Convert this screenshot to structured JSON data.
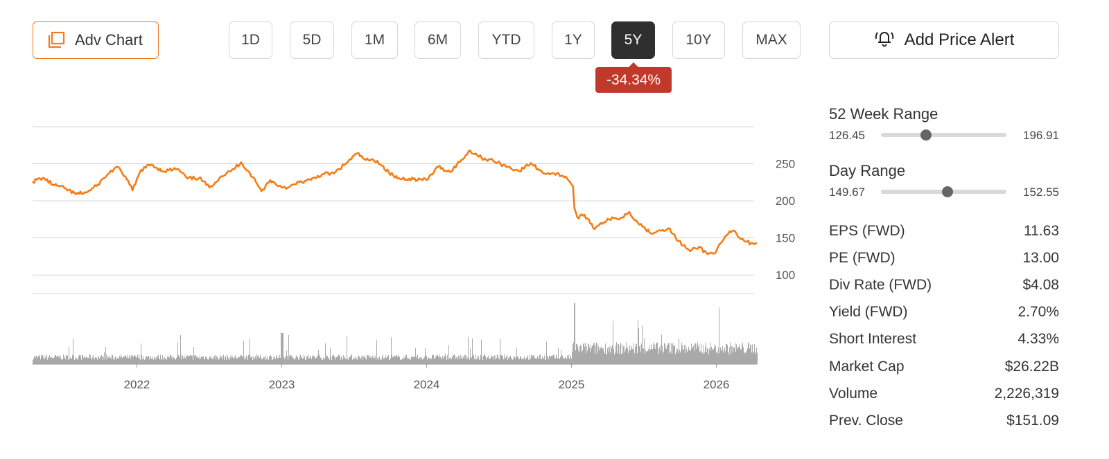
{
  "toolbar": {
    "adv_chart_label": "Adv Chart",
    "ranges": [
      "1D",
      "5D",
      "1M",
      "6M",
      "YTD",
      "1Y",
      "5Y",
      "10Y",
      "MAX"
    ],
    "active_range": "5Y",
    "add_alert_label": "Add Price Alert"
  },
  "change_badge": "-34.34%",
  "chart_data": {
    "type": "line",
    "x_tick_labels": [
      "2022",
      "2023",
      "2024",
      "2025",
      "2026"
    ],
    "y_tick_labels": [
      "250",
      "200",
      "150",
      "100"
    ],
    "ylim": [
      75,
      300
    ],
    "x_range": [
      2021.28,
      2026.28
    ],
    "grid": true,
    "line_color": "#f57c13",
    "volume_color": "#a9a9a9",
    "series": [
      {
        "values": [
          [
            2021.28,
            226
          ],
          [
            2021.35,
            231
          ],
          [
            2021.42,
            222
          ],
          [
            2021.5,
            217
          ],
          [
            2021.58,
            209
          ],
          [
            2021.66,
            212
          ],
          [
            2021.72,
            220
          ],
          [
            2021.8,
            236
          ],
          [
            2021.86,
            246
          ],
          [
            2021.92,
            233
          ],
          [
            2021.97,
            214
          ],
          [
            2022.03,
            242
          ],
          [
            2022.1,
            249
          ],
          [
            2022.18,
            240
          ],
          [
            2022.28,
            243
          ],
          [
            2022.35,
            230
          ],
          [
            2022.43,
            231
          ],
          [
            2022.5,
            218
          ],
          [
            2022.58,
            233
          ],
          [
            2022.65,
            240
          ],
          [
            2022.72,
            252
          ],
          [
            2022.8,
            232
          ],
          [
            2022.86,
            213
          ],
          [
            2022.92,
            228
          ],
          [
            2022.98,
            220
          ],
          [
            2023.05,
            218
          ],
          [
            2023.12,
            225
          ],
          [
            2023.2,
            228
          ],
          [
            2023.28,
            236
          ],
          [
            2023.36,
            237
          ],
          [
            2023.44,
            250
          ],
          [
            2023.52,
            264
          ],
          [
            2023.58,
            255
          ],
          [
            2023.66,
            254
          ],
          [
            2023.74,
            238
          ],
          [
            2023.8,
            230
          ],
          [
            2023.88,
            230
          ],
          [
            2024.0,
            228
          ],
          [
            2024.08,
            246
          ],
          [
            2024.16,
            239
          ],
          [
            2024.24,
            255
          ],
          [
            2024.3,
            268
          ],
          [
            2024.38,
            258
          ],
          [
            2024.46,
            254
          ],
          [
            2024.56,
            246
          ],
          [
            2024.64,
            240
          ],
          [
            2024.72,
            251
          ],
          [
            2024.8,
            238
          ],
          [
            2024.88,
            237
          ],
          [
            2024.96,
            233
          ],
          [
            2025.01,
            220
          ],
          [
            2025.02,
            190
          ],
          [
            2025.04,
            178
          ],
          [
            2025.08,
            180
          ],
          [
            2025.12,
            175
          ],
          [
            2025.16,
            162
          ],
          [
            2025.2,
            170
          ],
          [
            2025.26,
            175
          ],
          [
            2025.34,
            177
          ],
          [
            2025.4,
            185
          ],
          [
            2025.46,
            170
          ],
          [
            2025.5,
            165
          ],
          [
            2025.54,
            157
          ],
          [
            2025.6,
            160
          ],
          [
            2025.67,
            163
          ],
          [
            2025.72,
            150
          ],
          [
            2025.77,
            140
          ],
          [
            2025.82,
            132
          ],
          [
            2025.88,
            138
          ],
          [
            2025.94,
            128
          ],
          [
            2026.0,
            132
          ],
          [
            2026.04,
            145
          ],
          [
            2026.08,
            155
          ],
          [
            2026.12,
            160
          ],
          [
            2026.16,
            150
          ],
          [
            2026.2,
            145
          ],
          [
            2026.24,
            143
          ],
          [
            2026.28,
            143
          ]
        ]
      }
    ]
  },
  "stats": {
    "week52": {
      "title": "52 Week Range",
      "low": "126.45",
      "high": "196.91",
      "position": 0.36
    },
    "day": {
      "title": "Day Range",
      "low": "149.67",
      "high": "152.55",
      "position": 0.53
    },
    "rows": [
      {
        "label": "EPS (FWD)",
        "value": "11.63"
      },
      {
        "label": "PE (FWD)",
        "value": "13.00"
      },
      {
        "label": "Div Rate (FWD)",
        "value": "$4.08"
      },
      {
        "label": "Yield (FWD)",
        "value": "2.70%"
      },
      {
        "label": "Short Interest",
        "value": "4.33%"
      },
      {
        "label": "Market Cap",
        "value": "$26.22B"
      },
      {
        "label": "Volume",
        "value": "2,226,319"
      },
      {
        "label": "Prev. Close",
        "value": "$151.09"
      }
    ]
  }
}
